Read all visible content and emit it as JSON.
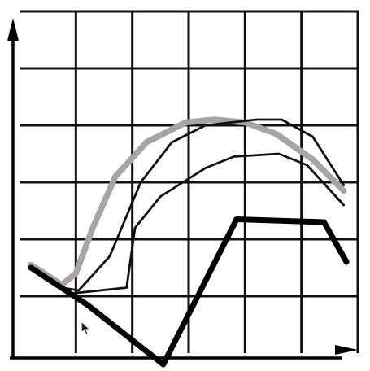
{
  "chart_data": {
    "type": "line",
    "title": "",
    "xlabel": "",
    "ylabel": "",
    "xlim": [
      0,
      6
    ],
    "ylim": [
      0,
      6
    ],
    "grid": true,
    "legend": "none",
    "series": [
      {
        "name": "gray-thick-curve",
        "color": "#a9a3a6",
        "style": "thick",
        "x": [
          0.2,
          0.75,
          1.0,
          1.3,
          1.7,
          2.25,
          2.95,
          3.45,
          4.0,
          4.55,
          5.2,
          5.75
        ],
        "y": [
          1.55,
          1.2,
          1.4,
          2.2,
          3.1,
          3.7,
          4.05,
          4.1,
          4.05,
          3.85,
          3.4,
          2.85
        ]
      },
      {
        "name": "thin-curve-upper",
        "color": "#111111",
        "style": "thin",
        "x": [
          0.75,
          1.05,
          1.6,
          2.15,
          2.7,
          3.3,
          4.2,
          4.65,
          5.2,
          5.75
        ],
        "y": [
          1.15,
          1.1,
          1.7,
          3.0,
          3.7,
          4.0,
          4.1,
          4.1,
          3.8,
          2.95
        ]
      },
      {
        "name": "thin-curve-lower",
        "color": "#111111",
        "style": "thin",
        "x": [
          0.95,
          1.9,
          2.05,
          2.5,
          3.3,
          3.8,
          4.6,
          5.1,
          5.75
        ],
        "y": [
          1.05,
          1.15,
          2.2,
          2.75,
          3.25,
          3.45,
          3.5,
          3.3,
          2.6
        ]
      },
      {
        "name": "black-thick-line",
        "color": "#000000",
        "style": "thick",
        "x": [
          0.2,
          1.2,
          2.55,
          3.85,
          5.4,
          5.8
        ],
        "y": [
          1.5,
          0.85,
          -0.2,
          2.35,
          2.3,
          1.6
        ]
      }
    ],
    "cursor": {
      "x": 1.1,
      "y": 0.55
    }
  }
}
